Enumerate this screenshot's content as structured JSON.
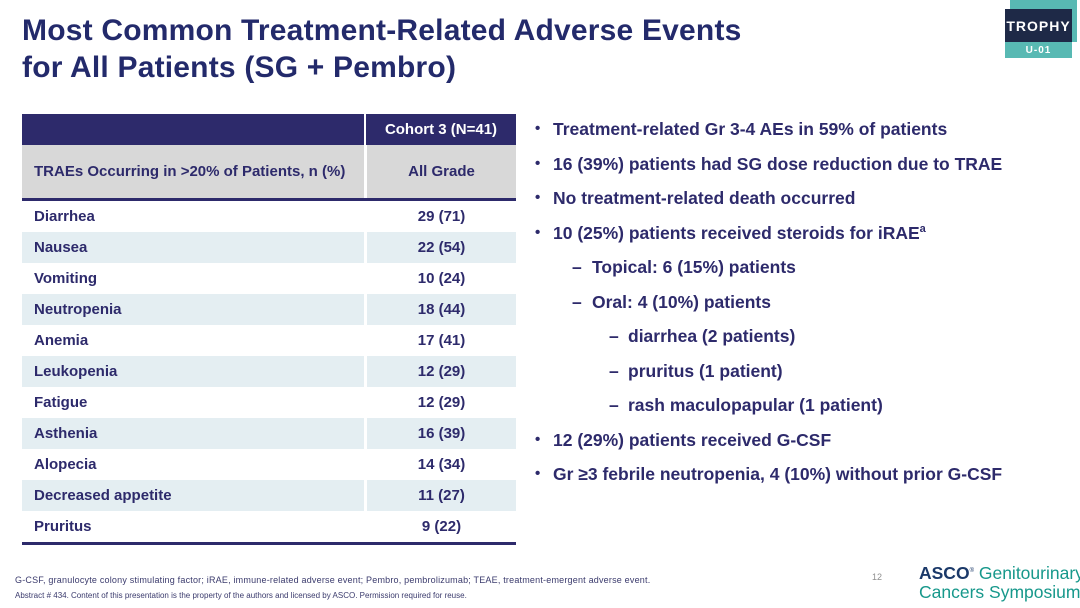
{
  "slide": {
    "title_line1": "Most Common Treatment-Related Adverse Events",
    "title_line2": "for All Patients (SG + Pembro)",
    "page_number": "12"
  },
  "trophy_logo": {
    "name": "TROPHY",
    "sub": "U-01",
    "navy": "#1e2947",
    "teal": "#58b9b3"
  },
  "table": {
    "header_col2": "Cohort 3 (N=41)",
    "subheader_col1": "TRAEs Occurring in >20% of Patients, n (%)",
    "subheader_col2": "All Grade",
    "rows": [
      {
        "label": "Diarrhea",
        "value": "29 (71)"
      },
      {
        "label": "Nausea",
        "value": "22 (54)"
      },
      {
        "label": "Vomiting",
        "value": "10 (24)"
      },
      {
        "label": "Neutropenia",
        "value": "18 (44)"
      },
      {
        "label": "Anemia",
        "value": "17 (41)"
      },
      {
        "label": "Leukopenia",
        "value": "12 (29)"
      },
      {
        "label": "Fatigue",
        "value": "12 (29)"
      },
      {
        "label": "Asthenia",
        "value": "16 (39)"
      },
      {
        "label": "Alopecia",
        "value": "14 (34)"
      },
      {
        "label": "Decreased appetite",
        "value": "11 (27)"
      },
      {
        "label": "Pruritus",
        "value": "9 (22)"
      }
    ]
  },
  "bullets": [
    {
      "level": 1,
      "marker": "•",
      "text": "Treatment-related Gr 3-4 AEs in 59% of patients"
    },
    {
      "level": 1,
      "marker": "•",
      "text": "16 (39%) patients had SG dose reduction due to TRAE"
    },
    {
      "level": 1,
      "marker": "•",
      "text": "No treatment-related death occurred"
    },
    {
      "level": 1,
      "marker": "•",
      "text": "10 (25%) patients received steroids for iRAE",
      "sup": "a"
    },
    {
      "level": 2,
      "marker": "–",
      "text": "Topical: 6 (15%) patients"
    },
    {
      "level": 2,
      "marker": "–",
      "text": "Oral: 4 (10%) patients"
    },
    {
      "level": 3,
      "marker": "–",
      "text": "diarrhea (2 patients)"
    },
    {
      "level": 3,
      "marker": "–",
      "text": "pruritus (1 patient)"
    },
    {
      "level": 3,
      "marker": "–",
      "text": "rash maculopapular (1 patient)"
    },
    {
      "level": 1,
      "marker": "•",
      "text": "12 (29%) patients received G-CSF"
    },
    {
      "level": 1,
      "marker": "•",
      "text": "Gr ≥3 febrile neutropenia, 4 (10%) without prior G-CSF"
    }
  ],
  "footer": {
    "abbreviations": "G-CSF, granulocyte colony stimulating factor; iRAE, immune-related adverse event; Pembro, pembrolizumab; TEAE, treatment-emergent adverse event.",
    "license": "Abstract # 434. Content of this presentation is the property of the authors and licensed by ASCO. Permission required for reuse.",
    "asco_logo": {
      "asco": "ASCO",
      "reg": "®",
      "line1_rest": "Genitourinary",
      "line2": "Cancers Symposium"
    }
  },
  "colors": {
    "title_navy": "#232a6b",
    "table_header_navy": "#2d2a6b",
    "subheader_gray": "#d8d8d8",
    "alt_row_blue": "#e4eef2",
    "text_navy": "#2d2a6b",
    "trophy_navy": "#1e2947",
    "trophy_teal": "#58b9b3",
    "asco_navy": "#1b3969",
    "asco_teal": "#17988b"
  }
}
